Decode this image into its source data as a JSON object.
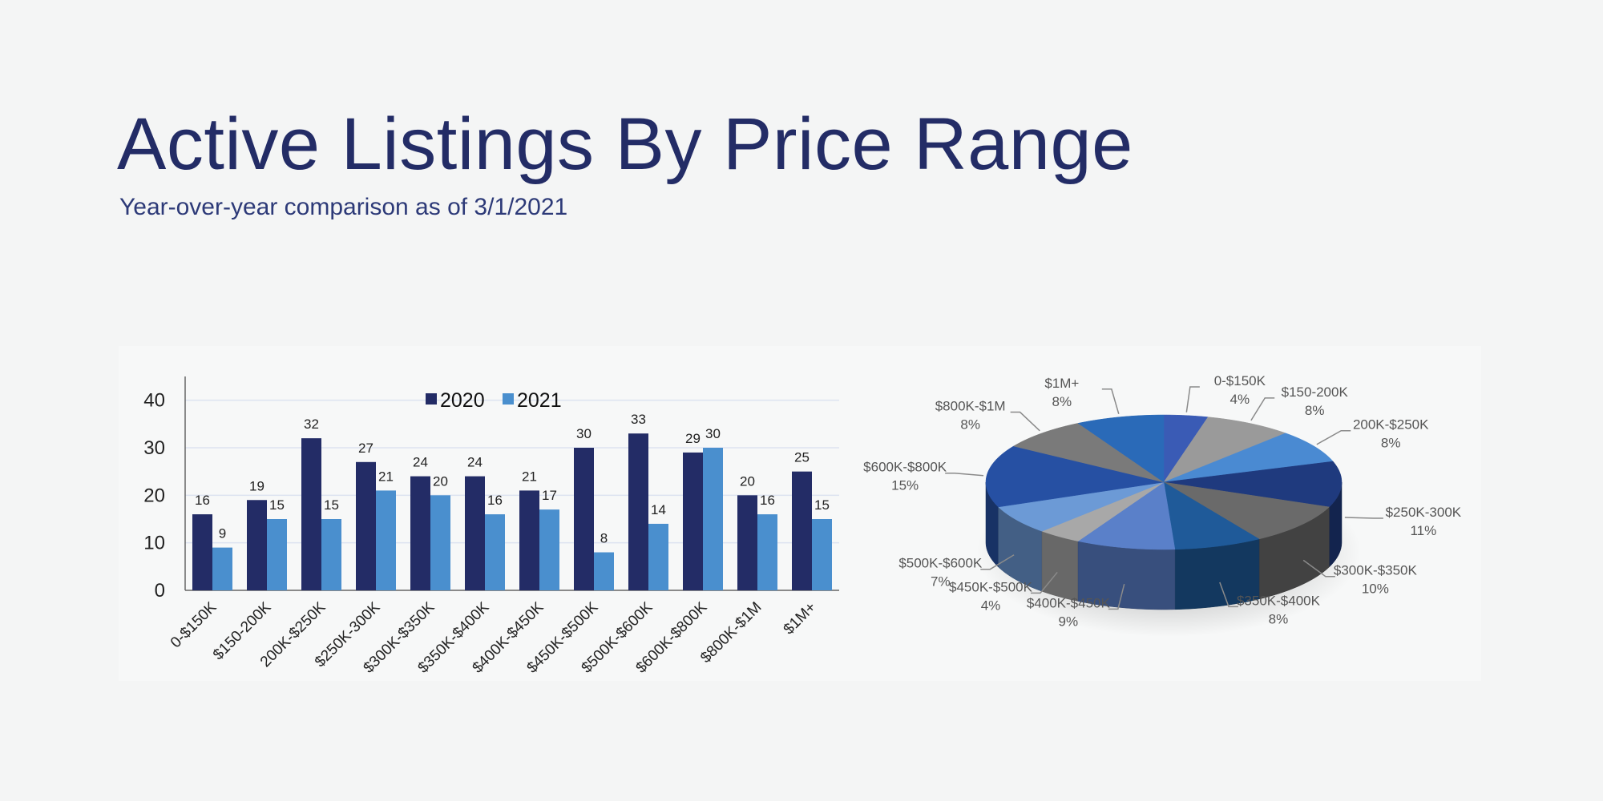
{
  "title": "Active Listings By Price Range",
  "subtitle": "Year-over-year comparison as of 3/1/2021",
  "chart_data": [
    {
      "type": "bar",
      "categories": [
        "0-$150K",
        "$150-200K",
        "200K-$250K",
        "$250K-300K",
        "$300K-$350K",
        "$350K-$400K",
        "$400K-$450K",
        "$450K-$500K",
        "$500K-$600K",
        "$600K-$800K",
        "$800K-$1M",
        "$1M+"
      ],
      "series": [
        {
          "name": "2020",
          "color": "#232c66",
          "values": [
            16,
            19,
            32,
            27,
            24,
            24,
            21,
            30,
            33,
            29,
            20,
            25
          ]
        },
        {
          "name": "2021",
          "color": "#4a8fce",
          "values": [
            9,
            15,
            15,
            21,
            20,
            16,
            17,
            8,
            14,
            30,
            16,
            15
          ]
        }
      ],
      "ylim": [
        0,
        45
      ],
      "yticks": [
        0,
        10,
        20,
        30,
        40
      ],
      "grid": true,
      "legend": "top"
    },
    {
      "type": "pie",
      "labels": [
        "0-$150K",
        "$150-200K",
        "200K-$250K",
        "$250K-300K",
        "$300K-$350K",
        "$350K-$400K",
        "$400K-$450K",
        "$450K-$500K",
        "$500K-$600K",
        "$600K-$800K",
        "$800K-$1M",
        "$1M+"
      ],
      "values": [
        4,
        8,
        8,
        11,
        10,
        8,
        9,
        4,
        7,
        15,
        8,
        8
      ],
      "value_labels": [
        "4%",
        "8%",
        "8%",
        "11%",
        "10%",
        "8%",
        "9%",
        "4%",
        "7%",
        "15%",
        "8%",
        "8%"
      ],
      "colors": [
        "#3a5bb5",
        "#9a9a9a",
        "#4a8ad2",
        "#1f3a7e",
        "#6a6a6a",
        "#1f5a99",
        "#5a80c9",
        "#a8a8a8",
        "#6c9ad6",
        "#2650a3",
        "#7a7a7a",
        "#2a6ab8"
      ],
      "style": "3d"
    }
  ]
}
